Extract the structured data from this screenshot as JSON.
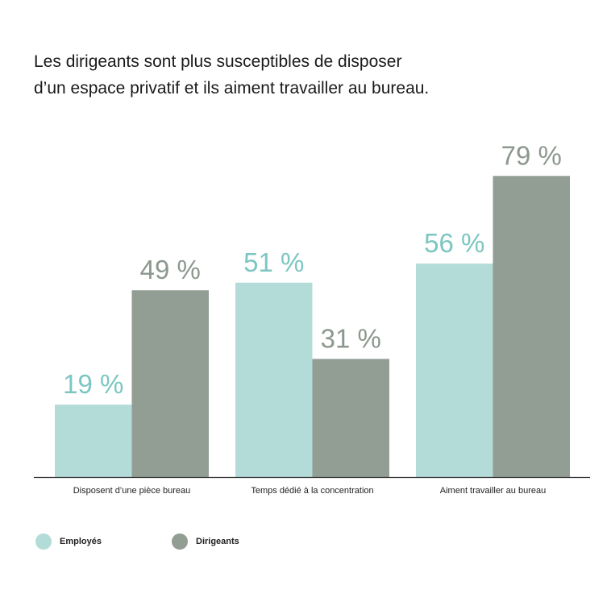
{
  "chart_data": {
    "type": "bar",
    "title_lines": [
      "Les dirigeants sont plus susceptibles de disposer",
      "d’un espace privatif et ils aiment travailler au bureau."
    ],
    "categories": [
      "Disposent d’une pièce bureau",
      "Temps dédié à la concentration",
      "Aiment travailler au bureau"
    ],
    "series": [
      {
        "name": "Employés",
        "values": [
          19,
          51,
          56
        ],
        "labels": [
          "19 %",
          "51 %",
          "56 %"
        ],
        "color": "#b3dcd9",
        "label_color": "#7cc6c2"
      },
      {
        "name": "Dirigeants",
        "values": [
          49,
          31,
          79
        ],
        "labels": [
          "49 %",
          "31 %",
          "79 %"
        ],
        "color": "#929e94",
        "label_color": "#8c988e"
      }
    ],
    "ylim": [
      0,
      100
    ],
    "grid": false,
    "legend_position": "bottom-left"
  }
}
